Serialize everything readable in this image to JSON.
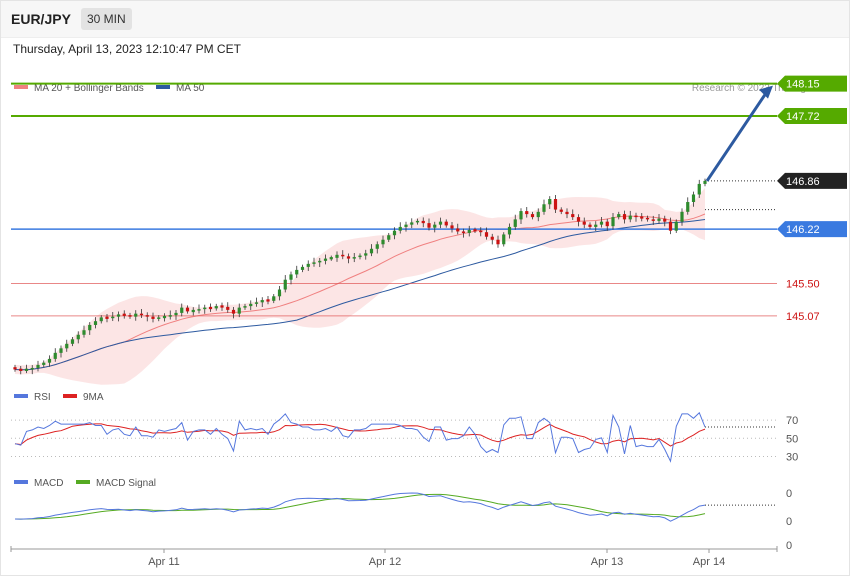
{
  "header": {
    "pair": "EUR/JPY",
    "timeframe": "30 MIN",
    "datetime": "Thursday, April 13, 2023 12:10:47 PM CET"
  },
  "legend": {
    "ma20": "MA 20 + Bollinger Bands",
    "ma50": "MA 50",
    "copyright": "Research © 2023 Trading Central"
  },
  "colors": {
    "up": "#2e8b2e",
    "down": "#cc1111",
    "resistance": "#55aa00",
    "pivot": "#3a7ae0",
    "support": "#e05555",
    "ma20": "#f08080",
    "ma50": "#2d5aa0",
    "rsi": "#5577dd",
    "rsi_ma": "#dd2222",
    "macd": "#5577dd",
    "macd_signal": "#55aa22",
    "arrow": "#2d5aa0"
  },
  "chart_data": [
    {
      "type": "candlestick",
      "ylim": [
        144.26,
        148.45
      ],
      "x_ticks": [
        "Apr 11",
        "Apr 12",
        "Apr 13",
        "Apr 14"
      ],
      "levels": [
        {
          "label": "148.15",
          "value": 148.15,
          "kind": "resistance"
        },
        {
          "label": "147.72",
          "value": 147.72,
          "kind": "resistance"
        },
        {
          "label": "146.86",
          "value": 146.86,
          "kind": "last"
        },
        {
          "label": "146.22",
          "value": 146.22,
          "kind": "pivot"
        },
        {
          "label": "145.50",
          "value": 145.5,
          "kind": "support"
        },
        {
          "label": "145.07",
          "value": 145.07,
          "kind": "support"
        }
      ],
      "closes": [
        144.36,
        144.35,
        144.36,
        144.38,
        144.42,
        144.45,
        144.5,
        144.58,
        144.64,
        144.7,
        144.76,
        144.82,
        144.88,
        144.95,
        145.0,
        145.05,
        145.04,
        145.06,
        145.09,
        145.08,
        145.06,
        145.1,
        145.08,
        145.06,
        145.03,
        145.05,
        145.06,
        145.08,
        145.11,
        145.18,
        145.13,
        145.14,
        145.16,
        145.18,
        145.17,
        145.2,
        145.19,
        145.15,
        145.1,
        145.18,
        145.2,
        145.23,
        145.25,
        145.28,
        145.27,
        145.33,
        145.42,
        145.55,
        145.62,
        145.68,
        145.72,
        145.76,
        145.78,
        145.8,
        145.83,
        145.84,
        145.88,
        145.86,
        145.83,
        145.85,
        145.87,
        145.9,
        145.96,
        146.02,
        146.08,
        146.14,
        146.2,
        146.25,
        146.28,
        146.31,
        146.33,
        146.3,
        146.24,
        146.28,
        146.32,
        146.27,
        146.23,
        146.19,
        146.17,
        146.21,
        146.2,
        146.18,
        146.12,
        146.08,
        146.02,
        146.15,
        146.25,
        146.35,
        146.46,
        146.42,
        146.38,
        146.45,
        146.55,
        146.62,
        146.48,
        146.45,
        146.42,
        146.38,
        146.32,
        146.28,
        146.25,
        146.28,
        146.32,
        146.26,
        146.38,
        146.42,
        146.35,
        146.4,
        146.38,
        146.37,
        146.35,
        146.33,
        146.36,
        146.32,
        146.2,
        146.32,
        146.45,
        146.58,
        146.68,
        146.82,
        146.86
      ],
      "rsi": {
        "ticks": [
          "70",
          "50",
          "30"
        ],
        "legend": [
          "RSI",
          "9MA"
        ]
      },
      "macd": {
        "ticks": [
          "0",
          "0",
          "0"
        ],
        "legend": [
          "MACD",
          "MACD Signal"
        ]
      }
    }
  ]
}
